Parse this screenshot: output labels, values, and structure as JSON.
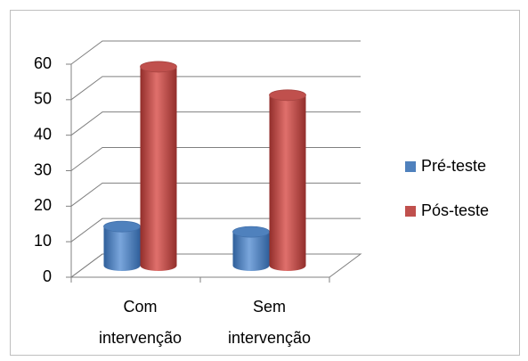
{
  "chart_data": {
    "type": "bar3d",
    "categories": [
      "Com intervenção",
      "Sem intervenção"
    ],
    "series": [
      {
        "name": "Pré-teste",
        "color": "#4f81bd",
        "values": [
          11,
          9.5
        ]
      },
      {
        "name": "Pós-teste",
        "color": "#c0504d",
        "values": [
          56,
          48
        ]
      }
    ],
    "ylim": [
      0,
      60
    ],
    "yticks": [
      0,
      10,
      20,
      30,
      40,
      50,
      60
    ],
    "grid": true,
    "legend": "right"
  }
}
